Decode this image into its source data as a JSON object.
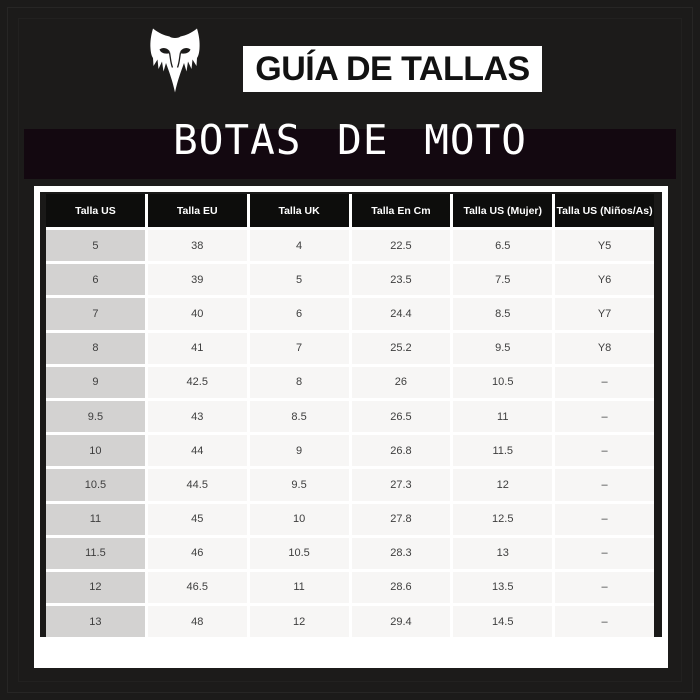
{
  "brand": {
    "logo_icon": "fox-head-icon",
    "title": "GUÍA DE TALLAS"
  },
  "page_title": "BOTAS DE MOTO",
  "colors": {
    "background": "#1c1b1a",
    "section_bar": "#130810",
    "title_box_bg": "#ffffff",
    "title_text": "#121212",
    "table_frame": "#ffffff",
    "table_mat": "#1a1918",
    "header_bg": "#0d0d0c",
    "header_text": "#ffffff",
    "first_col_bg": "#d3d2d1",
    "cell_bg": "#f7f6f5",
    "cell_text": "#3e3e3e"
  },
  "table": {
    "headers": [
      "Talla US",
      "Talla EU",
      "Talla UK",
      "Talla En Cm",
      "Talla US (Mujer)",
      "Talla US (Niños/As)"
    ],
    "rows": [
      [
        "5",
        "38",
        "4",
        "22.5",
        "6.5",
        "Y5"
      ],
      [
        "6",
        "39",
        "5",
        "23.5",
        "7.5",
        "Y6"
      ],
      [
        "7",
        "40",
        "6",
        "24.4",
        "8.5",
        "Y7"
      ],
      [
        "8",
        "41",
        "7",
        "25.2",
        "9.5",
        "Y8"
      ],
      [
        "9",
        "42.5",
        "8",
        "26",
        "10.5",
        "–"
      ],
      [
        "9.5",
        "43",
        "8.5",
        "26.5",
        "11",
        "–"
      ],
      [
        "10",
        "44",
        "9",
        "26.8",
        "11.5",
        "–"
      ],
      [
        "10.5",
        "44.5",
        "9.5",
        "27.3",
        "12",
        "–"
      ],
      [
        "11",
        "45",
        "10",
        "27.8",
        "12.5",
        "–"
      ],
      [
        "11.5",
        "46",
        "10.5",
        "28.3",
        "13",
        "–"
      ],
      [
        "12",
        "46.5",
        "11",
        "28.6",
        "13.5",
        "–"
      ],
      [
        "13",
        "48",
        "12",
        "29.4",
        "14.5",
        "–"
      ]
    ]
  }
}
